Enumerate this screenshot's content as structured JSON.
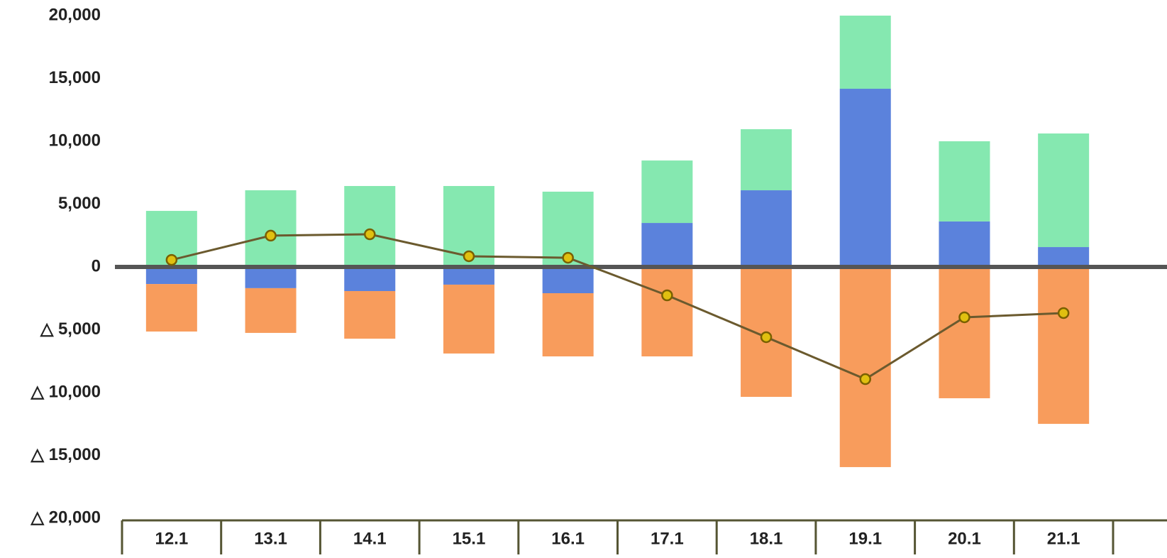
{
  "chart_data": {
    "type": "bar",
    "categories": [
      "12.1",
      "13.1",
      "14.1",
      "15.1",
      "16.1",
      "17.1",
      "18.1",
      "19.1",
      "20.1",
      "21.1"
    ],
    "series": [
      {
        "color": "#5b82dc",
        "values": [
          -1360,
          -1690,
          -1920,
          -1410,
          -2090,
          3500,
          6100,
          14180,
          3620,
          1580
        ]
      },
      {
        "color": "#85e8b0",
        "values": [
          4460,
          6100,
          6440,
          6440,
          5990,
          4970,
          4860,
          5820,
          6380,
          9040
        ]
      },
      {
        "color": "#f89c5c",
        "values": [
          -3780,
          -3560,
          -3790,
          -5480,
          -5030,
          -7120,
          -10340,
          -15930,
          -10450,
          -12490
        ]
      },
      {
        "type": "line",
        "color": "#6b5a2e",
        "marker_color": "#e0c010",
        "values": [
          560,
          2490,
          2600,
          850,
          730,
          -2260,
          -5590,
          -8930,
          -4010,
          -3670
        ]
      }
    ],
    "ylim": [
      -20000,
      20000
    ],
    "yticks": [
      {
        "value": -20000,
        "label": "△ 20,000"
      },
      {
        "value": -15000,
        "label": "△ 15,000"
      },
      {
        "value": -10000,
        "label": "△ 10,000"
      },
      {
        "value": -5000,
        "label": "△ 5,000"
      },
      0,
      {
        "value": 5000,
        "label": "5,000"
      },
      {
        "value": 10000,
        "label": "10,000"
      },
      {
        "value": 15000,
        "label": "15,000"
      },
      {
        "value": 20000,
        "label": "20,000"
      }
    ],
    "grid": false
  }
}
